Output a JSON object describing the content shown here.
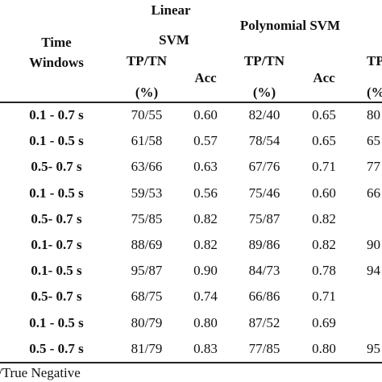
{
  "header": {
    "group1": [
      "Linear",
      "SVM"
    ],
    "group2": "Polynomial SVM",
    "row_label": [
      "Time",
      "Windows"
    ],
    "tp_tn": [
      "TP/TN",
      "TP/TN",
      "TP/"
    ],
    "pct": [
      "(%)",
      "(%)",
      "(%"
    ],
    "acc": [
      "Acc",
      "Acc"
    ]
  },
  "table": {
    "rows": [
      [
        "0.1 - 0.7 s",
        "70/55",
        "0.60",
        "82/40",
        "0.65",
        "80"
      ],
      [
        "0.1 - 0.5 s",
        "61/58",
        "0.57",
        "78/54",
        "0.65",
        "65"
      ],
      [
        "0.5- 0.7 s",
        "63/66",
        "0.63",
        "67/76",
        "0.71",
        "77"
      ],
      [
        "0.1 - 0.5 s",
        "59/53",
        "0.56",
        "75/46",
        "0.60",
        "66"
      ],
      [
        "0.5- 0.7 s",
        "75/85",
        "0.82",
        "75/87",
        "0.82"
      ],
      [
        "0.1- 0.7 s",
        "88/69",
        "0.82",
        "89/86",
        "0.82",
        "90"
      ],
      [
        "0.1- 0.5 s",
        "95/87",
        "0.90",
        "84/73",
        "0.78",
        "94"
      ],
      [
        "0.5- 0.7 s",
        "68/75",
        "0.74",
        "66/86",
        "0.71"
      ],
      [
        "0.1 - 0.5 s",
        "80/79",
        "0.80",
        "87/52",
        "0.69"
      ],
      [
        "0.5 - 0.7 s",
        "81/79",
        "0.83",
        "77/85",
        "0.80",
        "95"
      ]
    ]
  },
  "footer": "/True Negative"
}
